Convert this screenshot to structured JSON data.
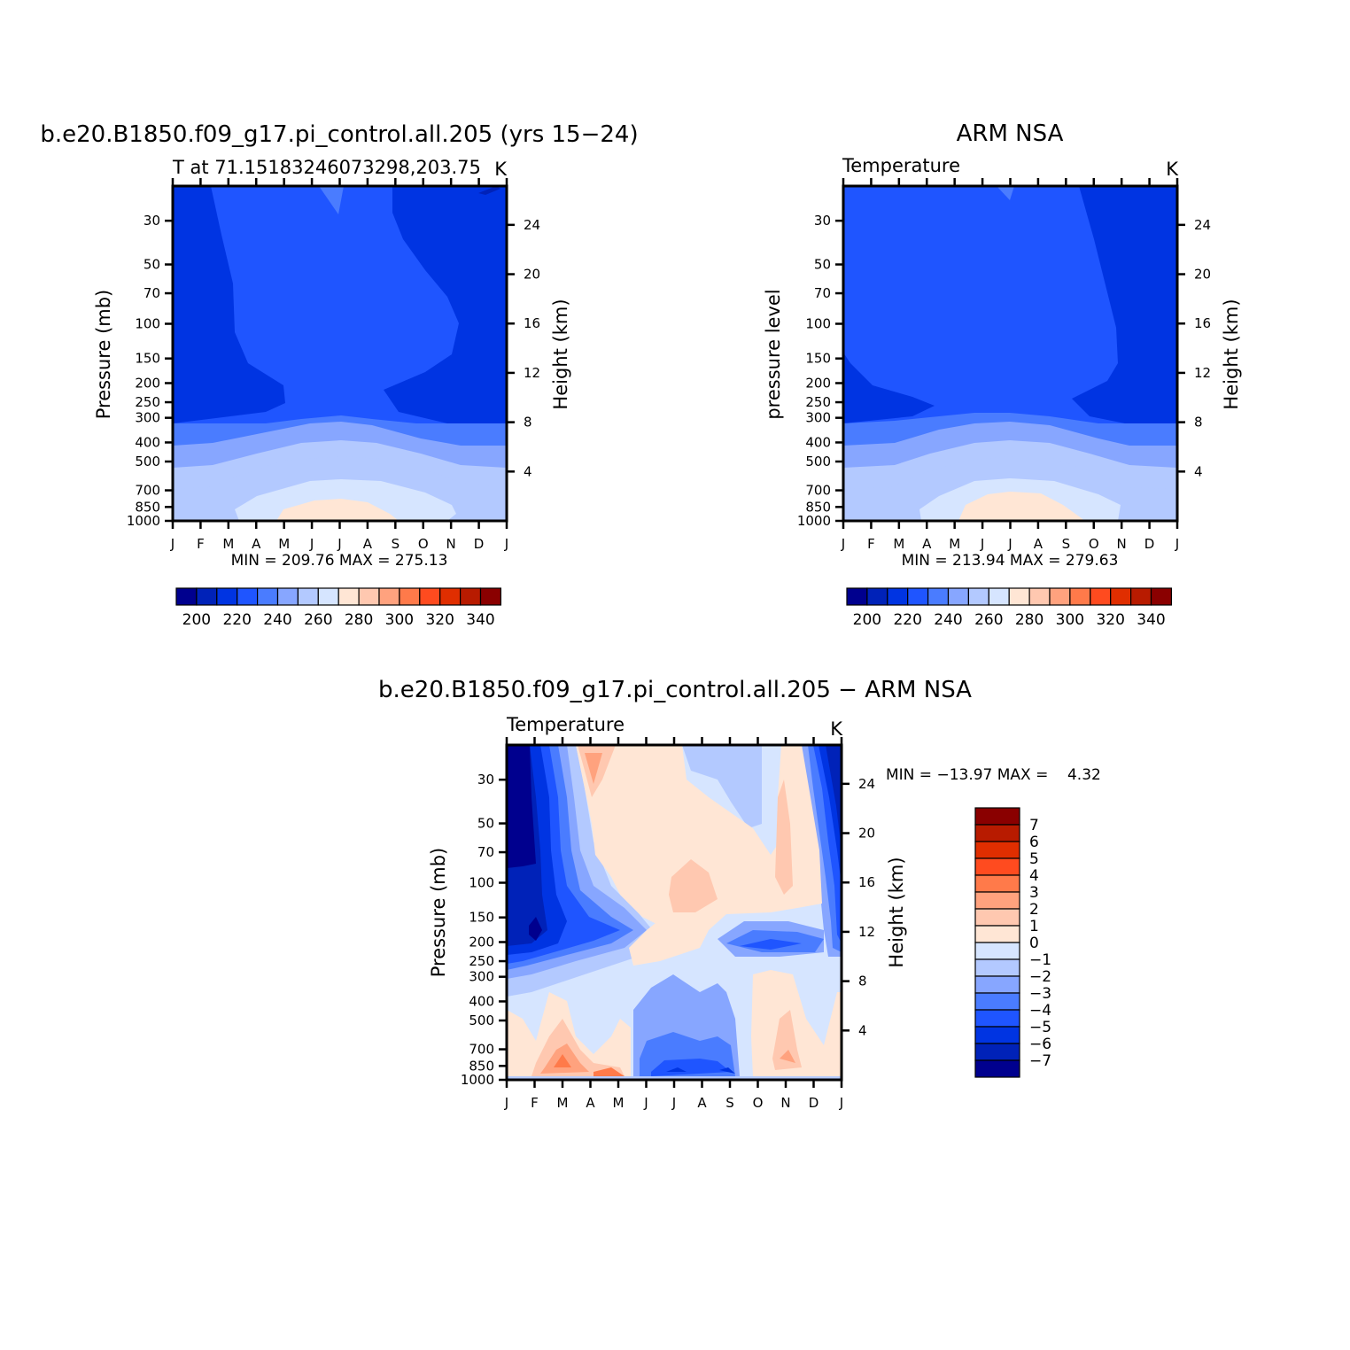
{
  "chart_data": [
    {
      "type": "heatmap",
      "title": "b.e20.B1850.f09_g17.pi_control.all.205 (yrs 15-24)",
      "subtitle_left": "T at 71.15183246073298,203.75",
      "subtitle_right": "K",
      "ylabel_left": "Pressure (mb)",
      "ylabel_right": "Height (km)",
      "x_ticks": [
        "J",
        "F",
        "M",
        "A",
        "M",
        "J",
        "J",
        "A",
        "S",
        "O",
        "N",
        "D",
        "J"
      ],
      "pressure_ticks": [
        "30",
        "50",
        "70",
        "100",
        "150",
        "200",
        "250",
        "300",
        "400",
        "500",
        "700",
        "850",
        "1000"
      ],
      "height_ticks": [
        "24",
        "20",
        "16",
        "12",
        "8",
        "4"
      ],
      "minmax": "MIN = 209.76 MAX = 275.13",
      "color_levels": [
        "200",
        "220",
        "240",
        "260",
        "280",
        "300",
        "320",
        "340"
      ],
      "min": 209.76,
      "max": 275.13,
      "ylim_mb": [
        20,
        1000
      ]
    },
    {
      "type": "heatmap",
      "title": "ARM NSA",
      "subtitle_left": "Temperature",
      "subtitle_right": "K",
      "ylabel_left": "pressure level",
      "ylabel_right": "Height (km)",
      "x_ticks": [
        "J",
        "F",
        "M",
        "A",
        "M",
        "J",
        "J",
        "A",
        "S",
        "O",
        "N",
        "D",
        "J"
      ],
      "pressure_ticks": [
        "30",
        "50",
        "70",
        "100",
        "150",
        "200",
        "250",
        "300",
        "400",
        "500",
        "700",
        "850",
        "1000"
      ],
      "height_ticks": [
        "24",
        "20",
        "16",
        "12",
        "8",
        "4"
      ],
      "minmax": "MIN = 213.94 MAX = 279.63",
      "color_levels": [
        "200",
        "220",
        "240",
        "260",
        "280",
        "300",
        "320",
        "340"
      ],
      "min": 213.94,
      "max": 279.63,
      "ylim_mb": [
        20,
        1000
      ]
    },
    {
      "type": "heatmap",
      "title": "b.e20.B1850.f09_g17.pi_control.all.205 - ARM NSA",
      "subtitle_left": "Temperature",
      "subtitle_right": "K",
      "ylabel_left": "Pressure (mb)",
      "ylabel_right": "Height (km)",
      "x_ticks": [
        "J",
        "F",
        "M",
        "A",
        "M",
        "J",
        "J",
        "A",
        "S",
        "O",
        "N",
        "D",
        "J"
      ],
      "pressure_ticks": [
        "30",
        "50",
        "70",
        "100",
        "150",
        "200",
        "250",
        "300",
        "400",
        "500",
        "700",
        "850",
        "1000"
      ],
      "height_ticks": [
        "24",
        "20",
        "16",
        "12",
        "8",
        "4"
      ],
      "minmax": "MIN = -13.97 MAX =    4.32",
      "color_levels": [
        "7",
        "6",
        "5",
        "4",
        "3",
        "2",
        "1",
        "0",
        "-1",
        "-2",
        "-3",
        "-4",
        "-5",
        "-6",
        "-7"
      ],
      "min": -13.97,
      "max": 4.32,
      "ylim_mb": [
        20,
        1000
      ]
    }
  ],
  "colors": {
    "abs_palette": [
      "#00008e",
      "#0022b8",
      "#0034e2",
      "#1f55ff",
      "#4a7cff",
      "#87a6ff",
      "#b3c9ff",
      "#d6e5ff",
      "#ffe6d5",
      "#ffc8b0",
      "#ffa27e",
      "#ff7a4a",
      "#ff4b1f",
      "#e02e00",
      "#b81b00",
      "#8a0000"
    ],
    "diff_palette": [
      "#8a0000",
      "#b81b00",
      "#e02e00",
      "#ff4b1f",
      "#ff7a4a",
      "#ffa27e",
      "#ffc8b0",
      "#ffe6d5",
      "#d6e5ff",
      "#b3c9ff",
      "#87a6ff",
      "#4a7cff",
      "#1f55ff",
      "#0034e2",
      "#0022b8",
      "#00008e"
    ]
  }
}
